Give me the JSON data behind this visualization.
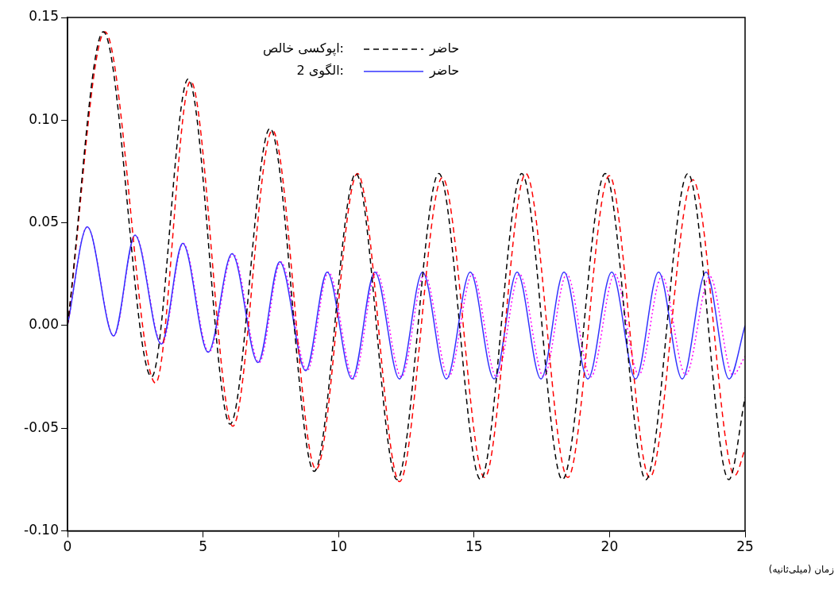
{
  "chart_data": {
    "type": "line",
    "xlabel": "زمان (میلی‌ثانیه)",
    "xlim": [
      0,
      25
    ],
    "xticks": [
      0,
      5,
      10,
      15,
      20,
      25
    ],
    "ylim": [
      -0.1,
      0.15
    ],
    "yticks": [
      {
        "value": -0.1,
        "label": "-0.10"
      },
      {
        "value": -0.05,
        "label": "-0.05"
      },
      {
        "value": 0,
        "label": "0.00"
      },
      {
        "value": 0.05,
        "label": "0.05"
      },
      {
        "value": 0.1,
        "label": "0.10"
      },
      {
        "value": 0.15,
        "label": "0.15"
      }
    ],
    "grid": false,
    "legend": "top right",
    "marker": "none",
    "annotations": [
      "اپوکسی خالص:",
      "الگوی 2:"
    ],
    "series": [
      {
        "name": "حاضر",
        "color": "#000000",
        "line_style": "dashed",
        "x": [
          0,
          1.32,
          3.1,
          4.45,
          6.0,
          7.47,
          9.1,
          10.64,
          12.16,
          13.7,
          15.24,
          16.76,
          18.26,
          19.84,
          21.34,
          22.89,
          24.4,
          25
        ],
        "values": [
          0,
          0.143,
          -0.025,
          0.12,
          -0.048,
          0.096,
          -0.071,
          0.074,
          -0.075,
          0.074,
          -0.075,
          0.074,
          -0.075,
          0.074,
          -0.075,
          0.074,
          -0.075,
          -0.035
        ]
      },
      {
        "color": "#ff0000",
        "line_style": "dashed",
        "x": [
          0,
          1.38,
          3.25,
          4.54,
          6.1,
          7.56,
          9.17,
          10.7,
          12.25,
          13.83,
          15.39,
          16.91,
          18.46,
          19.99,
          21.48,
          23.07,
          24.62,
          25
        ],
        "values": [
          0,
          0.143,
          -0.028,
          0.119,
          -0.049,
          0.095,
          -0.07,
          0.074,
          -0.076,
          0.072,
          -0.074,
          0.074,
          -0.074,
          0.073,
          -0.074,
          0.071,
          -0.073,
          -0.06
        ]
      },
      {
        "name": "حاضر",
        "color": "#3333ff",
        "line_style": "solid",
        "x": [
          0,
          0.73,
          1.7,
          2.49,
          3.46,
          4.25,
          5.19,
          6.07,
          7.03,
          7.83,
          8.79,
          9.58,
          10.5,
          11.34,
          12.25,
          13.1,
          13.98,
          14.86,
          15.74,
          16.59,
          17.47,
          18.32,
          19.2,
          20.08,
          20.96,
          21.81,
          22.68,
          23.56,
          24.41,
          25
        ],
        "values": [
          0,
          0.048,
          -0.005,
          0.044,
          -0.009,
          0.04,
          -0.013,
          0.035,
          -0.018,
          0.031,
          -0.022,
          0.026,
          -0.026,
          0.026,
          -0.026,
          0.026,
          -0.026,
          0.026,
          -0.026,
          0.026,
          -0.026,
          0.026,
          -0.026,
          0.026,
          -0.026,
          0.026,
          -0.026,
          0.026,
          -0.026,
          0
        ]
      },
      {
        "color": "#ff00ff",
        "line_style": "dotted",
        "x": [
          0,
          0.73,
          1.71,
          2.5,
          3.48,
          4.27,
          5.22,
          6.1,
          7.07,
          7.87,
          8.84,
          9.63,
          10.56,
          11.4,
          12.32,
          13.17,
          14.06,
          14.94,
          15.83,
          16.68,
          17.57,
          18.42,
          19.31,
          20.19,
          21.08,
          21.93,
          22.81,
          23.7,
          24.55,
          25
        ],
        "values": [
          0,
          0.048,
          -0.005,
          0.044,
          -0.009,
          0.04,
          -0.013,
          0.035,
          -0.018,
          0.031,
          -0.022,
          0.026,
          -0.026,
          0.026,
          -0.025,
          0.025,
          -0.025,
          0.025,
          -0.025,
          0.025,
          -0.025,
          0.025,
          -0.025,
          0.025,
          -0.024,
          0.024,
          -0.024,
          0.024,
          -0.024,
          -0.015
        ]
      }
    ]
  }
}
